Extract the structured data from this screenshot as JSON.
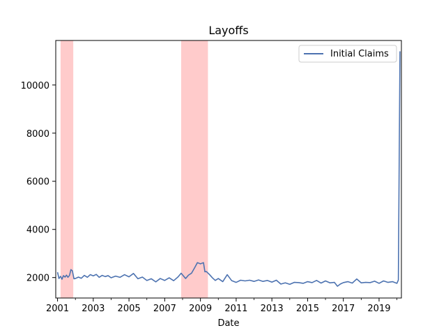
{
  "chart_data": {
    "type": "line",
    "title": "Layoffs",
    "xlabel": "Date",
    "ylabel": "",
    "xlim": [
      2000.9,
      2020.25
    ],
    "ylim": [
      1150,
      11850
    ],
    "x_ticks": [
      2001,
      2003,
      2005,
      2007,
      2009,
      2011,
      2013,
      2015,
      2017,
      2019
    ],
    "x_tick_labels": [
      "2001",
      "2003",
      "2005",
      "2007",
      "2009",
      "2011",
      "2013",
      "2015",
      "2017",
      "2019"
    ],
    "y_ticks": [
      2000,
      4000,
      6000,
      8000,
      10000
    ],
    "y_tick_labels": [
      "2000",
      "4000",
      "6000",
      "8000",
      "10000"
    ],
    "grid": false,
    "legend": {
      "placement": "top-right"
    },
    "line_color": "#4c72b0",
    "recession_color": "#ffa0a0",
    "recessions": [
      {
        "start": 2001.17,
        "end": 2001.88
      },
      {
        "start": 2007.92,
        "end": 2009.42
      }
    ],
    "series": [
      {
        "name": "Initial Claims",
        "x": [
          2001.0,
          2001.08,
          2001.17,
          2001.25,
          2001.33,
          2001.42,
          2001.5,
          2001.58,
          2001.67,
          2001.75,
          2001.83,
          2001.92,
          2002.0,
          2002.17,
          2002.33,
          2002.5,
          2002.67,
          2002.83,
          2003.0,
          2003.17,
          2003.33,
          2003.5,
          2003.67,
          2003.83,
          2004.0,
          2004.25,
          2004.5,
          2004.75,
          2005.0,
          2005.25,
          2005.5,
          2005.75,
          2006.0,
          2006.25,
          2006.5,
          2006.75,
          2007.0,
          2007.25,
          2007.5,
          2007.75,
          2007.92,
          2008.17,
          2008.33,
          2008.5,
          2008.67,
          2008.83,
          2009.0,
          2009.17,
          2009.25,
          2009.33,
          2009.5,
          2009.67,
          2009.83,
          2010.0,
          2010.25,
          2010.5,
          2010.75,
          2011.0,
          2011.25,
          2011.5,
          2011.75,
          2012.0,
          2012.25,
          2012.5,
          2012.75,
          2013.0,
          2013.25,
          2013.5,
          2013.75,
          2014.0,
          2014.25,
          2014.5,
          2014.75,
          2015.0,
          2015.25,
          2015.5,
          2015.75,
          2016.0,
          2016.25,
          2016.5,
          2016.67,
          2016.83,
          2017.0,
          2017.25,
          2017.5,
          2017.75,
          2018.0,
          2018.25,
          2018.5,
          2018.75,
          2019.0,
          2019.25,
          2019.5,
          2019.75,
          2020.0,
          2020.08,
          2020.17
        ],
        "y": [
          2220,
          1960,
          2050,
          1930,
          2080,
          2020,
          2100,
          2010,
          2090,
          2330,
          2280,
          1950,
          1960,
          2020,
          1970,
          2090,
          2010,
          2120,
          2070,
          2130,
          2010,
          2090,
          2040,
          2080,
          1990,
          2060,
          2010,
          2120,
          2030,
          2170,
          1950,
          2020,
          1880,
          1950,
          1820,
          1960,
          1880,
          1990,
          1870,
          2030,
          2180,
          1960,
          2100,
          2180,
          2400,
          2620,
          2570,
          2620,
          2240,
          2250,
          2130,
          1990,
          1880,
          1960,
          1830,
          2120,
          1870,
          1800,
          1890,
          1860,
          1890,
          1840,
          1900,
          1840,
          1880,
          1810,
          1890,
          1730,
          1780,
          1720,
          1800,
          1790,
          1760,
          1830,
          1790,
          1880,
          1770,
          1860,
          1780,
          1800,
          1640,
          1730,
          1790,
          1830,
          1770,
          1940,
          1780,
          1800,
          1790,
          1850,
          1760,
          1860,
          1800,
          1830,
          1760,
          1900,
          11400
        ]
      }
    ]
  }
}
